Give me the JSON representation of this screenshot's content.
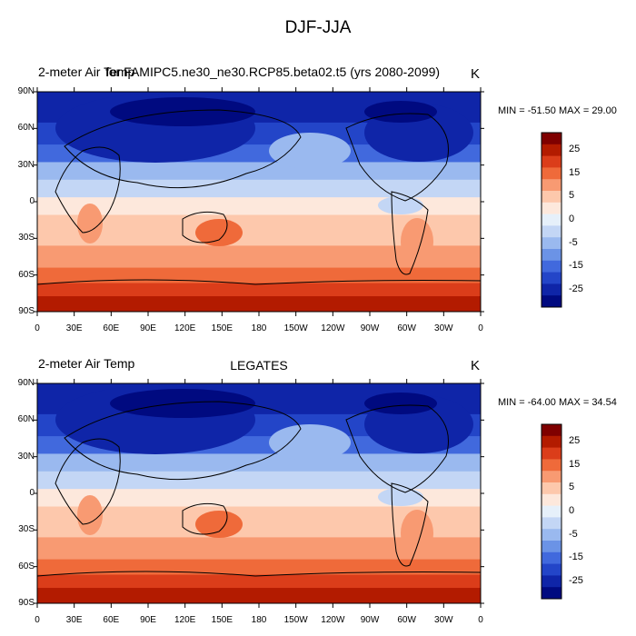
{
  "title": "DJF-JJA",
  "panels": [
    {
      "left_label": "2-meter Air Temp",
      "center_label": "for FAMIPC5.ne30_ne30.RCP85.beta02.t5 (yrs 2080-2099)",
      "units": "K",
      "minmax": "MIN = -51.50 MAX =  29.00"
    },
    {
      "left_label": "2-meter Air Temp",
      "center_label": "LEGATES",
      "units": "K",
      "minmax": "MIN = -64.00 MAX =  34.54"
    }
  ],
  "lat_ticks": [
    "90N",
    "60N",
    "30N",
    "0",
    "30S",
    "60S",
    "90S"
  ],
  "lon_ticks": [
    "0",
    "30E",
    "60E",
    "90E",
    "120E",
    "150E",
    "180",
    "150W",
    "120W",
    "90W",
    "60W",
    "30W",
    "0"
  ],
  "colorbar": {
    "labels": [
      "25",
      "15",
      "5",
      "0",
      "-5",
      "-15",
      "-25"
    ],
    "colors": [
      "#7f0000",
      "#b31b00",
      "#db3d1a",
      "#ef6a3a",
      "#f89a72",
      "#fdc8ac",
      "#fde8dc",
      "#e6f0fa",
      "#c3d6f5",
      "#9ab9ef",
      "#6b93e6",
      "#4169dd",
      "#2345c8",
      "#0f25a8",
      "#000a80"
    ]
  },
  "map_colors": {
    "deep_blue": "#0f25a8",
    "blue": "#2345c8",
    "mid_blue": "#4169dd",
    "light_blue": "#9ab9ef",
    "pale_blue": "#c3d6f5",
    "pale": "#fde8dc",
    "peach": "#fdc8ac",
    "salmon": "#f89a72",
    "orange": "#ef6a3a",
    "red": "#db3d1a",
    "dark_red": "#b31b00"
  }
}
